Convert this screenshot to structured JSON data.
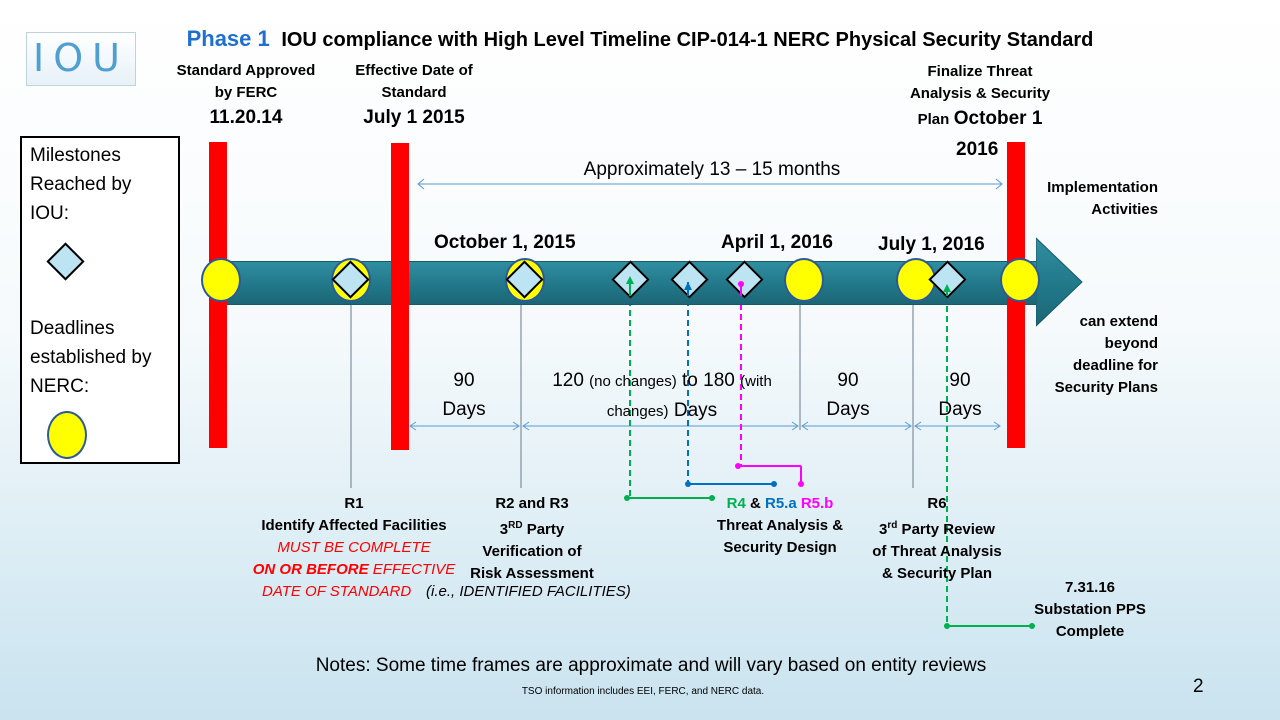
{
  "title": {
    "phase": "Phase 1",
    "text": "IOU compliance with High Level Timeline  CIP-014-1 NERC Physical Security Standard"
  },
  "logo": {
    "text": "IOU"
  },
  "milestones_top": {
    "approved_line1": "Standard Approved",
    "approved_line2": "by FERC",
    "approved_date": "11.20.14",
    "effective_line1": "Effective Date of",
    "effective_line2": "Standard",
    "effective_date": "July 1  2015",
    "finalize_line1": "Finalize Threat",
    "finalize_line2": "Analysis & Security",
    "finalize_line3_a": "Plan",
    "finalize_line3_b": "October 1",
    "finalize_line4": "2016"
  },
  "span_label": "Approximately 13 – 15 months",
  "implementation": {
    "line1": "Implementation",
    "line2": "Activities"
  },
  "extend": {
    "line1": "can extend",
    "line2": "beyond",
    "line3": "deadline for",
    "line4": "Security Plans"
  },
  "dates_on_arrow": {
    "oct": "October 1, 2015",
    "apr": "April 1, 2016",
    "jul": "July 1, 2016"
  },
  "legend": {
    "milestones_line1": "Milestones",
    "milestones_line2": "Reached by",
    "milestones_line3": "IOU:",
    "deadlines_line1": "Deadlines",
    "deadlines_line2": "established by",
    "deadlines_line3": "NERC:"
  },
  "durations": {
    "d1_num": "90",
    "d1_unit": "Days",
    "d2_a": "120",
    "d2_b": "(no changes)",
    "d2_c": "to 180",
    "d2_d": "(with",
    "d2_e": "changes)",
    "d2_f": "Days",
    "d3_num": "90",
    "d3_unit": "Days",
    "d4_num": "90",
    "d4_unit": "Days"
  },
  "requirements": {
    "r1_title": "R1",
    "r1_line1": "Identify Affected Facilities",
    "r1_red1": "MUST BE COMPLETE",
    "r1_red2_bold": "ON OR BEFORE",
    "r1_red2_rest": " EFFECTIVE",
    "r1_red3": "DATE OF STANDARD",
    "r23_title": "R2 and R3",
    "r23_line1_a": "3",
    "r23_line1_sup": "RD",
    "r23_line1_b": "  Party",
    "r23_line2": "Verification of",
    "r23_line3": "Risk Assessment",
    "r23_line4": "(i.e., IDENTIFIED FACILITIES)",
    "r45_r4": "R4",
    "r45_amp": " & ",
    "r45_r5a": "R5.a",
    "r45_r5b": " R5.b",
    "r45_line1": "Threat Analysis &",
    "r45_line2": "Security Design",
    "r6_title": "R6",
    "r6_line1_a": "3",
    "r6_line1_sup": "rd",
    "r6_line1_b": " Party Review",
    "r6_line2": "of Threat Analysis",
    "r6_line3": "& Security Plan",
    "pps_line1": "7.31.16",
    "pps_line2": "Substation PPS",
    "pps_line3": "Complete"
  },
  "notes": "Notes:  Some time frames are approximate and will vary based on entity reviews",
  "tso": "TSO information includes EEI, FERC, and NERC data.",
  "page_number": "2",
  "colors": {
    "phase": "#1f6fd0",
    "deadline_bar": "#ff0000",
    "arrow": "#217889",
    "deadline_marker": "#ffff00",
    "milestone_marker": "#bde4f2",
    "r4": "#00b050",
    "r5a": "#0070c0",
    "r5b": "#ff00ff"
  }
}
